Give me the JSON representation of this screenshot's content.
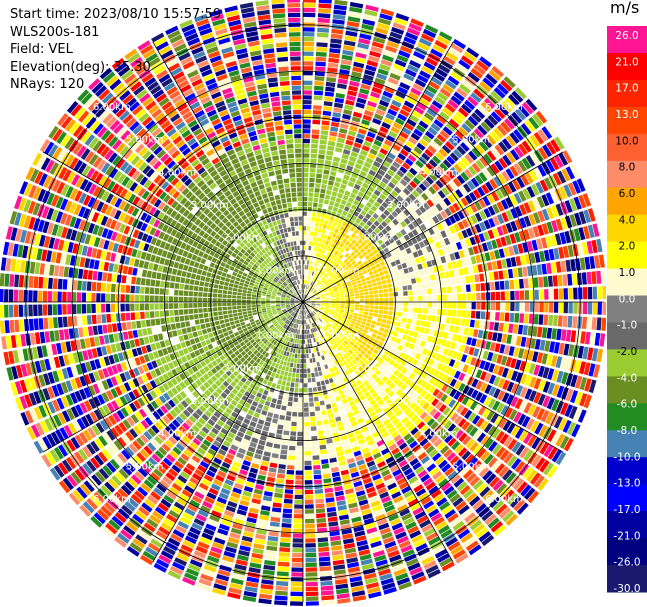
{
  "info": {
    "start_time": "Start time: 2023/08/10 15:57:59",
    "site": "WLS200s-181",
    "field": "Field: VEL",
    "elevation": "Elevation(deg): 35.30",
    "nrays": "NRays: 120"
  },
  "colorbar": {
    "unit": "m/s",
    "ticks": [
      "26.0",
      "21.0",
      "17.0",
      "13.0",
      "10.0",
      "8.0",
      "6.0",
      "4.0",
      "2.0",
      "1.0",
      "0.0",
      "-1.0",
      "-2.0",
      "-4.0",
      "-6.0",
      "-8.0",
      "-10.0",
      "-13.0",
      "-17.0",
      "-21.0",
      "-26.0",
      "-30.0"
    ],
    "colors": [
      "#ff1493",
      "#ff0000",
      "#ff2400",
      "#ff4500",
      "#ff6030",
      "#ff8c69",
      "#ffa500",
      "#ffd700",
      "#ffff00",
      "#fffacd",
      "#808080",
      "#696969",
      "#9acd32",
      "#6b8e23",
      "#228b22",
      "#4682b4",
      "#0000cd",
      "#0000ff",
      "#0000a0",
      "#000080",
      "#191970"
    ]
  },
  "chart_data": {
    "type": "ppi",
    "field": "VEL",
    "units": "m/s",
    "elevation_deg": 35.3,
    "nrays": 120,
    "max_range_km": 6.5,
    "range_rings_km": [
      1.0,
      2.0,
      3.0,
      4.0,
      5.0,
      6.0
    ],
    "ring_labels": [
      "1.00km",
      "2.00km",
      "3.00km",
      "4.00km",
      "5.00km",
      "6.00km"
    ],
    "azimuth_lines_deg": [
      0,
      30,
      60,
      90,
      120,
      150,
      180,
      210,
      240,
      270,
      300,
      330
    ],
    "pattern": "Near range (<2 km): receding +1 to +6 m/s to the east, approaching -1 to -4 m/s to the west with ~0 m/s band in between; 2-3 km: mostly 0 to -2 m/s with +2 to +4 m/s to the northeast; beyond ~3.5 km: noise spanning the full color scale."
  }
}
